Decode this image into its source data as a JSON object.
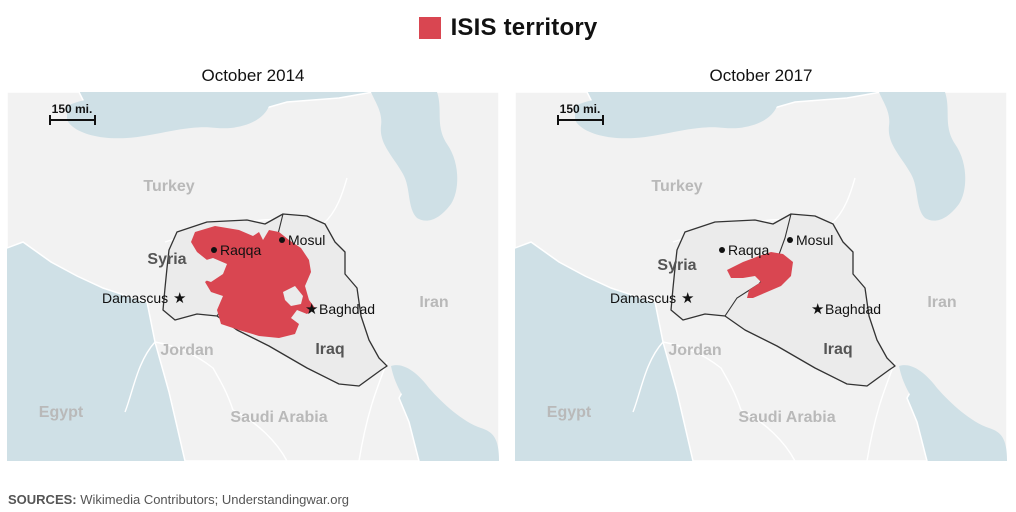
{
  "legend": {
    "label": "ISIS territory",
    "color": "#d94651"
  },
  "colors": {
    "water": "#cfe0e6",
    "land": "#f2f2f2",
    "highlight_land": "#ebebeb",
    "border": "#ffffff",
    "highlight_border": "#333333",
    "territory": "#d94651"
  },
  "panels": [
    {
      "title": "October 2014",
      "scale_label": "150 mi.",
      "countries": {
        "turkey": "Turkey",
        "syria": "Syria",
        "iraq": "Iraq",
        "iran": "Iran",
        "jordan": "Jordan",
        "egypt": "Egypt",
        "saudi": "Saudi Arabia"
      },
      "cities": {
        "raqqa": "Raqqa",
        "mosul": "Mosul",
        "damascus": "Damascus",
        "baghdad": "Baghdad"
      }
    },
    {
      "title": "October 2017",
      "scale_label": "150 mi.",
      "countries": {
        "turkey": "Turkey",
        "syria": "Syria",
        "iraq": "Iraq",
        "iran": "Iran",
        "jordan": "Jordan",
        "egypt": "Egypt",
        "saudi": "Saudi Arabia"
      },
      "cities": {
        "raqqa": "Raqqa",
        "mosul": "Mosul",
        "damascus": "Damascus",
        "baghdad": "Baghdad"
      }
    }
  ],
  "footer": {
    "label": "SOURCES:",
    "text": "Wikimedia Contributors; Understandingwar.org"
  }
}
